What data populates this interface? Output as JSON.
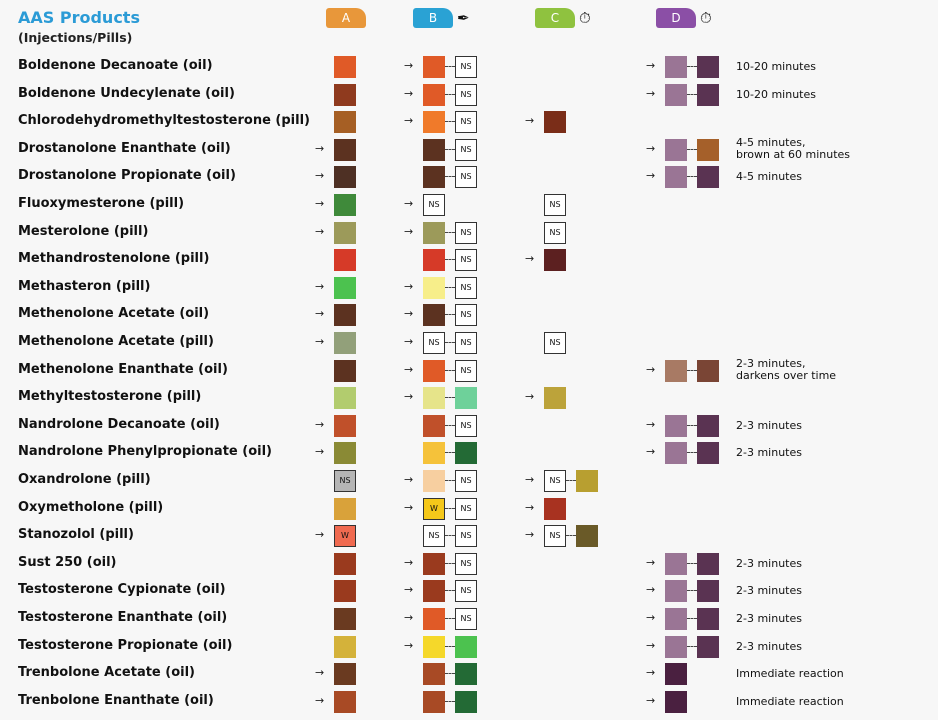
{
  "header": {
    "title": "AAS Products",
    "subtitle": "(Injections/Pills)",
    "columns": [
      {
        "label": "A",
        "color": "#e8973a",
        "icon": null
      },
      {
        "label": "B",
        "color": "#2aa2d4",
        "icon": "dropper-icon"
      },
      {
        "label": "C",
        "color": "#8fc23f",
        "icon": "stopwatch-icon"
      },
      {
        "label": "D",
        "color": "#8b4fa6",
        "icon": "stopwatch-icon"
      }
    ]
  },
  "rows": [
    {
      "name": "Boldenone Decanoate (oil)",
      "a": {
        "arrow": false,
        "cells": [
          {
            "c": "#e05a27"
          }
        ]
      },
      "b": {
        "arrow": true,
        "cells": [
          {
            "c": "#e05a27"
          },
          {
            "t": "NS"
          }
        ]
      },
      "c": null,
      "d": {
        "arrow": true,
        "cells": [
          {
            "c": "#9a7595"
          },
          {
            "c": "#5a3352"
          }
        ]
      },
      "note": [
        "10-20 minutes"
      ]
    },
    {
      "name": "Boldenone Undecylenate (oil)",
      "a": {
        "arrow": false,
        "cells": [
          {
            "c": "#8f3a1e"
          }
        ]
      },
      "b": {
        "arrow": true,
        "cells": [
          {
            "c": "#e05a27"
          },
          {
            "t": "NS"
          }
        ]
      },
      "c": null,
      "d": {
        "arrow": true,
        "cells": [
          {
            "c": "#9a7595"
          },
          {
            "c": "#5a3352"
          }
        ]
      },
      "note": [
        "10-20 minutes"
      ]
    },
    {
      "name": "Chlorodehydromethyltestosterone (pill)",
      "a": {
        "arrow": false,
        "cells": [
          {
            "c": "#a65f24"
          }
        ]
      },
      "b": {
        "arrow": true,
        "cells": [
          {
            "c": "#f07a2a"
          },
          {
            "t": "NS"
          }
        ]
      },
      "c": {
        "arrow": true,
        "cells": [
          {
            "c": "#7a2d18"
          }
        ]
      },
      "d": null,
      "note": []
    },
    {
      "name": "Drostanolone Enanthate (oil)",
      "a": {
        "arrow": true,
        "cells": [
          {
            "c": "#5c3220"
          }
        ]
      },
      "b": {
        "arrow": false,
        "cells": [
          {
            "c": "#5c3220"
          },
          {
            "t": "NS"
          }
        ]
      },
      "c": null,
      "d": {
        "arrow": true,
        "cells": [
          {
            "c": "#9a7595"
          },
          {
            "c": "#a5602a"
          }
        ]
      },
      "note": [
        "4-5 minutes,",
        "brown at 60 minutes"
      ]
    },
    {
      "name": "Drostanolone Propionate (oil)",
      "a": {
        "arrow": true,
        "cells": [
          {
            "c": "#4e3024"
          }
        ]
      },
      "b": {
        "arrow": false,
        "cells": [
          {
            "c": "#5c3220"
          },
          {
            "t": "NS"
          }
        ]
      },
      "c": null,
      "d": {
        "arrow": true,
        "cells": [
          {
            "c": "#9a7595"
          },
          {
            "c": "#5a3352"
          }
        ]
      },
      "note": [
        "4-5 minutes"
      ]
    },
    {
      "name": "Fluoxymesterone (pill)",
      "a": {
        "arrow": true,
        "cells": [
          {
            "c": "#3f8a3a"
          }
        ]
      },
      "b": {
        "arrow": true,
        "cells": [
          {
            "t": "NS"
          }
        ]
      },
      "c": {
        "arrow": false,
        "cells": [
          {
            "t": "NS"
          }
        ]
      },
      "d": null,
      "note": []
    },
    {
      "name": "Mesterolone (pill)",
      "a": {
        "arrow": true,
        "cells": [
          {
            "c": "#9c9a5a"
          }
        ]
      },
      "b": {
        "arrow": true,
        "cells": [
          {
            "c": "#9c9a5a"
          },
          {
            "t": "NS"
          }
        ]
      },
      "c": {
        "arrow": false,
        "cells": [
          {
            "t": "NS"
          }
        ]
      },
      "d": null,
      "note": []
    },
    {
      "name": "Methandrostenolone (pill)",
      "a": {
        "arrow": false,
        "cells": [
          {
            "c": "#d63a28"
          }
        ]
      },
      "b": {
        "arrow": false,
        "cells": [
          {
            "c": "#d63a28"
          },
          {
            "t": "NS"
          }
        ]
      },
      "c": {
        "arrow": true,
        "cells": [
          {
            "c": "#5c2020"
          }
        ]
      },
      "d": null,
      "note": []
    },
    {
      "name": "Methasteron (pill)",
      "a": {
        "arrow": true,
        "cells": [
          {
            "c": "#4cc24f"
          }
        ]
      },
      "b": {
        "arrow": true,
        "cells": [
          {
            "c": "#f7ee8a"
          },
          {
            "t": "NS"
          }
        ]
      },
      "c": null,
      "d": null,
      "note": []
    },
    {
      "name": "Methenolone Acetate (oil)",
      "a": {
        "arrow": true,
        "cells": [
          {
            "c": "#5c3220"
          }
        ]
      },
      "b": {
        "arrow": true,
        "cells": [
          {
            "c": "#5c3220"
          },
          {
            "t": "NS"
          }
        ]
      },
      "c": null,
      "d": null,
      "note": []
    },
    {
      "name": "Methenolone Acetate (pill)",
      "a": {
        "arrow": true,
        "cells": [
          {
            "c": "#92a07a"
          }
        ]
      },
      "b": {
        "arrow": true,
        "cells": [
          {
            "t": "NS"
          },
          {
            "t": "NS"
          }
        ]
      },
      "c": {
        "arrow": false,
        "cells": [
          {
            "t": "NS"
          }
        ]
      },
      "d": null,
      "note": []
    },
    {
      "name": "Methenolone Enanthate (oil)",
      "a": {
        "arrow": false,
        "cells": [
          {
            "c": "#5c3220"
          }
        ]
      },
      "b": {
        "arrow": true,
        "cells": [
          {
            "c": "#e05a27"
          },
          {
            "t": "NS"
          }
        ]
      },
      "c": null,
      "d": {
        "arrow": true,
        "cells": [
          {
            "c": "#a87a64"
          },
          {
            "c": "#7a4535"
          }
        ]
      },
      "note": [
        "2-3 minutes,",
        "darkens over time"
      ]
    },
    {
      "name": "Methyltestosterone (pill)",
      "a": {
        "arrow": false,
        "cells": [
          {
            "c": "#b2cc6e"
          }
        ]
      },
      "b": {
        "arrow": true,
        "cells": [
          {
            "c": "#e6e48a"
          },
          {
            "c": "#6ed19a"
          }
        ]
      },
      "c": {
        "arrow": true,
        "cells": [
          {
            "c": "#bca33a"
          }
        ]
      },
      "d": null,
      "note": []
    },
    {
      "name": "Nandrolone Decanoate (oil)",
      "a": {
        "arrow": true,
        "cells": [
          {
            "c": "#c0502a"
          }
        ]
      },
      "b": {
        "arrow": false,
        "cells": [
          {
            "c": "#c0502a"
          },
          {
            "t": "NS"
          }
        ]
      },
      "c": null,
      "d": {
        "arrow": true,
        "cells": [
          {
            "c": "#9a7595"
          },
          {
            "c": "#5a3352"
          }
        ]
      },
      "note": [
        "2-3 minutes"
      ]
    },
    {
      "name": "Nandrolone Phenylpropionate (oil)",
      "a": {
        "arrow": true,
        "cells": [
          {
            "c": "#8a8a35"
          }
        ]
      },
      "b": {
        "arrow": false,
        "cells": [
          {
            "c": "#f5c23a"
          },
          {
            "c": "#236a35"
          }
        ]
      },
      "c": null,
      "d": {
        "arrow": true,
        "cells": [
          {
            "c": "#9a7595"
          },
          {
            "c": "#5a3352"
          }
        ]
      },
      "note": [
        "2-3 minutes"
      ]
    },
    {
      "name": "Oxandrolone (pill)",
      "a": {
        "arrow": false,
        "cells": [
          {
            "c": "#b5b5b5",
            "t": "NS"
          }
        ]
      },
      "b": {
        "arrow": true,
        "cells": [
          {
            "c": "#f7cfa0"
          },
          {
            "t": "NS"
          }
        ]
      },
      "c": {
        "arrow": true,
        "cells": [
          {
            "t": "NS"
          },
          {
            "c": "#b89f30"
          }
        ]
      },
      "d": null,
      "note": []
    },
    {
      "name": "Oxymetholone (pill)",
      "a": {
        "arrow": false,
        "cells": [
          {
            "c": "#d9a23a"
          }
        ]
      },
      "b": {
        "arrow": true,
        "cells": [
          {
            "c": "#f5c81a",
            "t": "W"
          },
          {
            "t": "NS"
          }
        ]
      },
      "c": {
        "arrow": true,
        "cells": [
          {
            "c": "#a83220"
          }
        ]
      },
      "d": null,
      "note": []
    },
    {
      "name": "Stanozolol (pill)",
      "a": {
        "arrow": true,
        "cells": [
          {
            "c": "#f06a50",
            "t": "W"
          }
        ]
      },
      "b": {
        "arrow": false,
        "cells": [
          {
            "t": "NS"
          },
          {
            "t": "NS"
          }
        ]
      },
      "c": {
        "arrow": true,
        "cells": [
          {
            "t": "NS"
          },
          {
            "c": "#6a5a28"
          }
        ]
      },
      "d": null,
      "note": []
    },
    {
      "name": "Sust 250 (oil)",
      "a": {
        "arrow": false,
        "cells": [
          {
            "c": "#9a3a1e"
          }
        ]
      },
      "b": {
        "arrow": true,
        "cells": [
          {
            "c": "#9a3a1e"
          },
          {
            "t": "NS"
          }
        ]
      },
      "c": null,
      "d": {
        "arrow": true,
        "cells": [
          {
            "c": "#9a7595"
          },
          {
            "c": "#5a3352"
          }
        ]
      },
      "note": [
        "2-3 minutes"
      ]
    },
    {
      "name": "Testosterone Cypionate (oil)",
      "a": {
        "arrow": false,
        "cells": [
          {
            "c": "#9a3a1e"
          }
        ]
      },
      "b": {
        "arrow": true,
        "cells": [
          {
            "c": "#9a3a1e"
          },
          {
            "t": "NS"
          }
        ]
      },
      "c": null,
      "d": {
        "arrow": true,
        "cells": [
          {
            "c": "#9a7595"
          },
          {
            "c": "#5a3352"
          }
        ]
      },
      "note": [
        "2-3 minutes"
      ]
    },
    {
      "name": "Testosterone Enanthate (oil)",
      "a": {
        "arrow": false,
        "cells": [
          {
            "c": "#6a3a20"
          }
        ]
      },
      "b": {
        "arrow": true,
        "cells": [
          {
            "c": "#e05a27"
          },
          {
            "t": "NS"
          }
        ]
      },
      "c": null,
      "d": {
        "arrow": true,
        "cells": [
          {
            "c": "#9a7595"
          },
          {
            "c": "#5a3352"
          }
        ]
      },
      "note": [
        "2-3 minutes"
      ]
    },
    {
      "name": "Testosterone Propionate (oil)",
      "a": {
        "arrow": false,
        "cells": [
          {
            "c": "#d4b23a"
          }
        ]
      },
      "b": {
        "arrow": true,
        "cells": [
          {
            "c": "#f5d82a"
          },
          {
            "c": "#4cc24f"
          }
        ]
      },
      "c": null,
      "d": {
        "arrow": true,
        "cells": [
          {
            "c": "#9a7595"
          },
          {
            "c": "#5a3352"
          }
        ]
      },
      "note": [
        "2-3 minutes"
      ]
    },
    {
      "name": "Trenbolone Acetate (oil)",
      "a": {
        "arrow": true,
        "cells": [
          {
            "c": "#6a3a20"
          }
        ]
      },
      "b": {
        "arrow": false,
        "cells": [
          {
            "c": "#a84a25"
          },
          {
            "c": "#236a35"
          }
        ]
      },
      "c": null,
      "d": {
        "arrow": true,
        "cells": [
          {
            "c": "#4a2040"
          }
        ]
      },
      "note": [
        "Immediate reaction"
      ]
    },
    {
      "name": "Trenbolone Enanthate (oil)",
      "a": {
        "arrow": true,
        "cells": [
          {
            "c": "#a84a25"
          }
        ]
      },
      "b": {
        "arrow": false,
        "cells": [
          {
            "c": "#a84a25"
          },
          {
            "c": "#236a35"
          }
        ]
      },
      "c": null,
      "d": {
        "arrow": true,
        "cells": [
          {
            "c": "#4a2040"
          }
        ]
      },
      "note": [
        "Immediate reaction"
      ]
    }
  ]
}
